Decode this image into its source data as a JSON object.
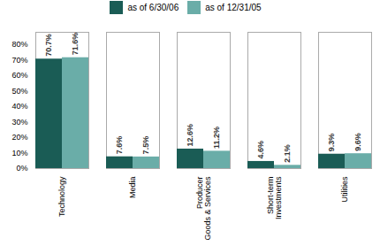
{
  "chart_data": {
    "type": "bar",
    "categories": [
      "Technology",
      "Media",
      "Producer\nGoods & Services",
      "Short-term\nInvestments",
      "Utilities"
    ],
    "series": [
      {
        "name": "as of 6/30/06",
        "color": "#1a5c55",
        "values": [
          70.7,
          7.6,
          12.6,
          4.6,
          9.3
        ],
        "value_labels": [
          "70.7%",
          "7.6%",
          "12.6%",
          "4.6%",
          "9.3%"
        ]
      },
      {
        "name": "as of 12/31/05",
        "color": "#6aada8",
        "values": [
          71.6,
          7.5,
          11.2,
          2.1,
          9.6
        ],
        "value_labels": [
          "71.6%",
          "7.5%",
          "11.2%",
          "2.1%",
          "9.6%"
        ]
      }
    ],
    "ylim": [
      0,
      88
    ],
    "yticks": [
      {
        "value": 0,
        "label": "0%"
      },
      {
        "value": 10,
        "label": "10%"
      },
      {
        "value": 20,
        "label": "20%"
      },
      {
        "value": 30,
        "label": "30%"
      },
      {
        "value": 40,
        "label": "40%"
      },
      {
        "value": 50,
        "label": "50%"
      },
      {
        "value": 60,
        "label": "60%"
      },
      {
        "value": 70,
        "label": "70%"
      },
      {
        "value": 80,
        "label": "80%"
      }
    ],
    "grid": false,
    "legend": "top",
    "data_labels": true
  }
}
